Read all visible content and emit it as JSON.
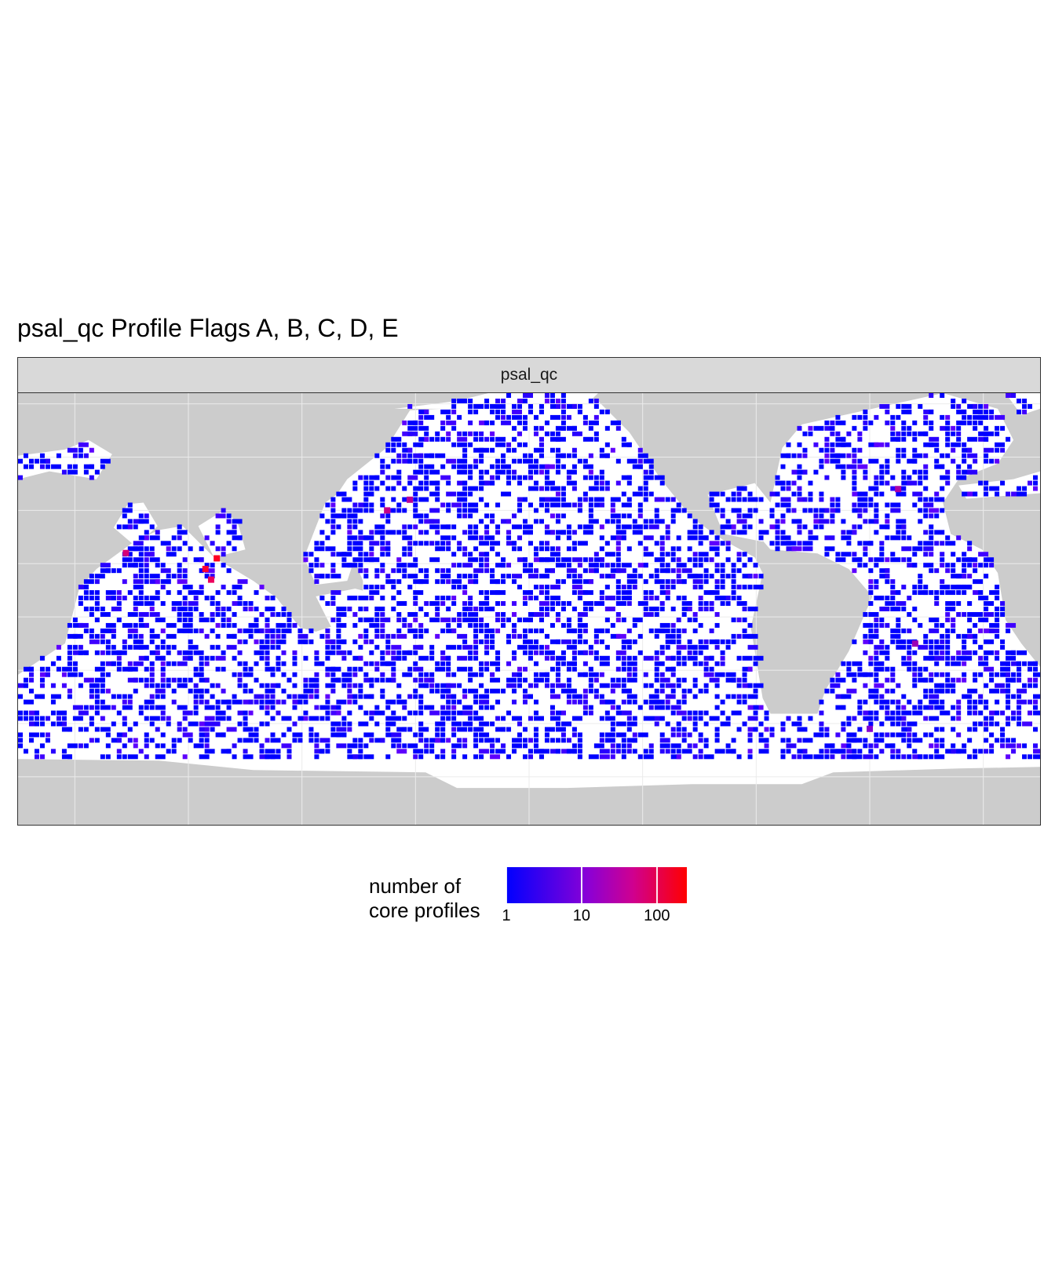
{
  "title": "psal_qc Profile Flags A, B, C, D, E",
  "facet": {
    "label": "psal_qc"
  },
  "legend": {
    "title_line1": "number of",
    "title_line2": "core profiles",
    "scale": "log10",
    "range": [
      1,
      250
    ],
    "ticks": [
      {
        "value": 1,
        "label": "1"
      },
      {
        "value": 10,
        "label": "10"
      },
      {
        "value": 100,
        "label": "100"
      }
    ],
    "color_low": "#0000ff",
    "color_high": "#ff0000"
  },
  "colors": {
    "land": "#cccccc",
    "ocean": "#ffffff",
    "grid": "#ebebeb",
    "strip": "#d9d9d9"
  },
  "chart_data": {
    "type": "heatmap",
    "projection": "Pacific-centered equirectangular, 20°E to 380°E",
    "x_range": [
      20,
      380
    ],
    "y_range": [
      -78,
      84
    ],
    "cell_size_deg": 2,
    "value_scale": "log10",
    "dominant_value_range": [
      1,
      4
    ],
    "hotspot_cells": [
      {
        "lon": 58,
        "lat": 24,
        "value": 40
      },
      {
        "lon": 86,
        "lat": 18,
        "value": 120
      },
      {
        "lon": 90,
        "lat": 22,
        "value": 150
      },
      {
        "lon": 88,
        "lat": 14,
        "value": 60
      },
      {
        "lon": 150,
        "lat": 40,
        "value": 30
      },
      {
        "lon": 158,
        "lat": 44,
        "value": 25
      },
      {
        "lon": 330,
        "lat": 48,
        "value": 20
      },
      {
        "lon": 336,
        "lat": -10,
        "value": 15
      },
      {
        "lon": 320,
        "lat": -42,
        "value": 10
      }
    ]
  }
}
